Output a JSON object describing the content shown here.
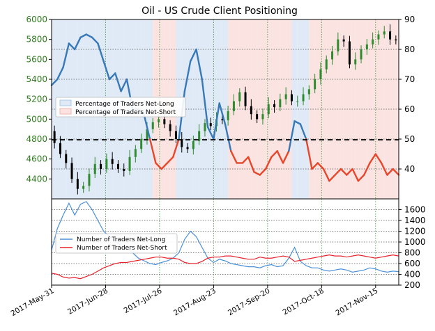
{
  "chart_data": [
    {
      "type": "line",
      "title": "Oil - US Crude Client Positioning",
      "price_axis": {
        "ylim": [
          4200,
          6000
        ],
        "ticks": [
          "4400",
          "4600",
          "4800",
          "5000",
          "5200",
          "5400",
          "5600",
          "5800",
          "6000"
        ]
      },
      "pct_axis": {
        "ylim": [
          30,
          90
        ],
        "ticks": [
          "40",
          "50",
          "60",
          "70",
          "80",
          "90"
        ]
      },
      "x_ticks": [
        "2017-May-31",
        "2017-Jun-28",
        "2017-Jul-26",
        "2017-Aug-23",
        "2017-Sep-20",
        "2017-Oct-18",
        "2017-Nov-15"
      ],
      "x_range_days": [
        0,
        180
      ],
      "legend_position": "upper-left",
      "legend": [
        "Percentage of Traders Net-Long",
        "Percentage of Traders Net-Short"
      ],
      "reference_line_value": 50,
      "price": {
        "x": [
          0,
          3,
          6,
          9,
          12,
          15,
          18,
          21,
          24,
          27,
          30,
          33,
          36,
          39,
          42,
          45,
          48,
          51,
          54,
          57,
          60,
          63,
          66,
          69,
          72,
          75,
          78,
          81,
          84,
          87,
          90,
          93,
          96,
          99,
          102,
          105,
          108,
          111,
          114,
          117,
          120,
          123,
          126,
          129,
          132,
          135,
          138,
          141,
          144,
          147,
          150,
          153,
          156,
          159,
          162,
          165,
          168,
          171,
          174,
          177,
          180
        ],
        "values": [
          4880,
          4760,
          4650,
          4560,
          4400,
          4300,
          4330,
          4450,
          4550,
          4500,
          4600,
          4550,
          4500,
          4480,
          4620,
          4700,
          4800,
          4900,
          4970,
          5000,
          4950,
          4880,
          4800,
          4720,
          4700,
          4780,
          4880,
          4960,
          4930,
          5000,
          4990,
          5080,
          5180,
          5270,
          5130,
          5050,
          5000,
          5050,
          5150,
          5120,
          5200,
          5250,
          5180,
          5180,
          5250,
          5300,
          5400,
          5500,
          5600,
          5680,
          5800,
          5780,
          5550,
          5600,
          5700,
          5750,
          5800,
          5850,
          5880,
          5800,
          5790
        ],
        "colors": {
          "up": "#2e8b2e",
          "down": "#000000"
        }
      },
      "net_long_pct": {
        "x": [
          0,
          3,
          6,
          9,
          12,
          15,
          18,
          21,
          24,
          27,
          30,
          33,
          36,
          39,
          42,
          45,
          48,
          51,
          54,
          57,
          60,
          63,
          66,
          69,
          72,
          75,
          78,
          81,
          84,
          87,
          90,
          93,
          96,
          99,
          102,
          105,
          108,
          111,
          114,
          117,
          120,
          123,
          126,
          129,
          132,
          135,
          138,
          141,
          144,
          147,
          150,
          153,
          156,
          159,
          162,
          165,
          168,
          171,
          174,
          177,
          180
        ],
        "values": [
          68,
          70,
          74,
          82,
          80,
          84,
          85,
          84,
          82,
          76,
          70,
          72,
          66,
          70,
          60,
          60,
          58,
          50,
          42,
          40,
          42,
          44,
          50,
          66,
          76,
          80,
          70,
          54,
          50,
          62,
          55,
          46,
          42,
          42,
          44,
          39,
          38,
          40,
          44,
          46,
          42,
          46,
          56,
          55,
          50,
          40,
          42,
          40,
          36,
          38,
          40,
          38,
          40,
          36,
          38,
          42,
          45,
          42,
          38,
          40,
          38
        ],
        "above_color": "#3878b8",
        "below_color": "#e8462a"
      },
      "fill_colors": {
        "long": "#dfeaf6",
        "short": "#fae3e0"
      }
    },
    {
      "type": "line",
      "y_axis": {
        "ylim": [
          200,
          1800
        ],
        "ticks": [
          "200",
          "400",
          "600",
          "800",
          "1000",
          "1200",
          "1400",
          "1600"
        ]
      },
      "x_range_days": [
        0,
        180
      ],
      "legend_position": "left",
      "series": [
        {
          "name": "Number of Traders Net-Long",
          "color": "#4a90d9",
          "x": [
            0,
            3,
            6,
            9,
            12,
            15,
            18,
            21,
            24,
            27,
            30,
            33,
            36,
            39,
            42,
            45,
            48,
            51,
            54,
            57,
            60,
            63,
            66,
            69,
            72,
            75,
            78,
            81,
            84,
            87,
            90,
            93,
            96,
            99,
            102,
            105,
            108,
            111,
            114,
            117,
            120,
            123,
            126,
            129,
            132,
            135,
            138,
            141,
            144,
            147,
            150,
            153,
            156,
            159,
            162,
            165,
            168,
            171,
            174,
            177,
            180
          ],
          "values": [
            850,
            1250,
            1500,
            1720,
            1500,
            1700,
            1750,
            1600,
            1400,
            1200,
            1100,
            1000,
            950,
            900,
            800,
            700,
            650,
            600,
            580,
            620,
            650,
            700,
            800,
            1050,
            1200,
            1100,
            900,
            700,
            620,
            680,
            650,
            600,
            580,
            560,
            540,
            540,
            520,
            560,
            580,
            540,
            560,
            700,
            900,
            640,
            560,
            520,
            520,
            480,
            460,
            480,
            500,
            480,
            440,
            460,
            480,
            520,
            500,
            460,
            440,
            460,
            450
          ]
        },
        {
          "name": "Number of Traders Net-Short",
          "color": "#e8202a",
          "x": [
            0,
            3,
            6,
            9,
            12,
            15,
            18,
            21,
            24,
            27,
            30,
            33,
            36,
            39,
            42,
            45,
            48,
            51,
            54,
            57,
            60,
            63,
            66,
            69,
            72,
            75,
            78,
            81,
            84,
            87,
            90,
            93,
            96,
            99,
            102,
            105,
            108,
            111,
            114,
            117,
            120,
            123,
            126,
            129,
            132,
            135,
            138,
            141,
            144,
            147,
            150,
            153,
            156,
            159,
            162,
            165,
            168,
            171,
            174,
            177,
            180
          ],
          "values": [
            420,
            400,
            350,
            330,
            340,
            320,
            360,
            400,
            460,
            520,
            560,
            600,
            620,
            620,
            640,
            660,
            680,
            700,
            720,
            720,
            700,
            700,
            680,
            620,
            600,
            600,
            640,
            700,
            720,
            720,
            740,
            740,
            720,
            700,
            680,
            680,
            720,
            700,
            700,
            720,
            740,
            720,
            640,
            660,
            680,
            700,
            720,
            740,
            760,
            740,
            740,
            720,
            740,
            760,
            740,
            720,
            700,
            720,
            740,
            760,
            740
          ]
        }
      ]
    }
  ]
}
